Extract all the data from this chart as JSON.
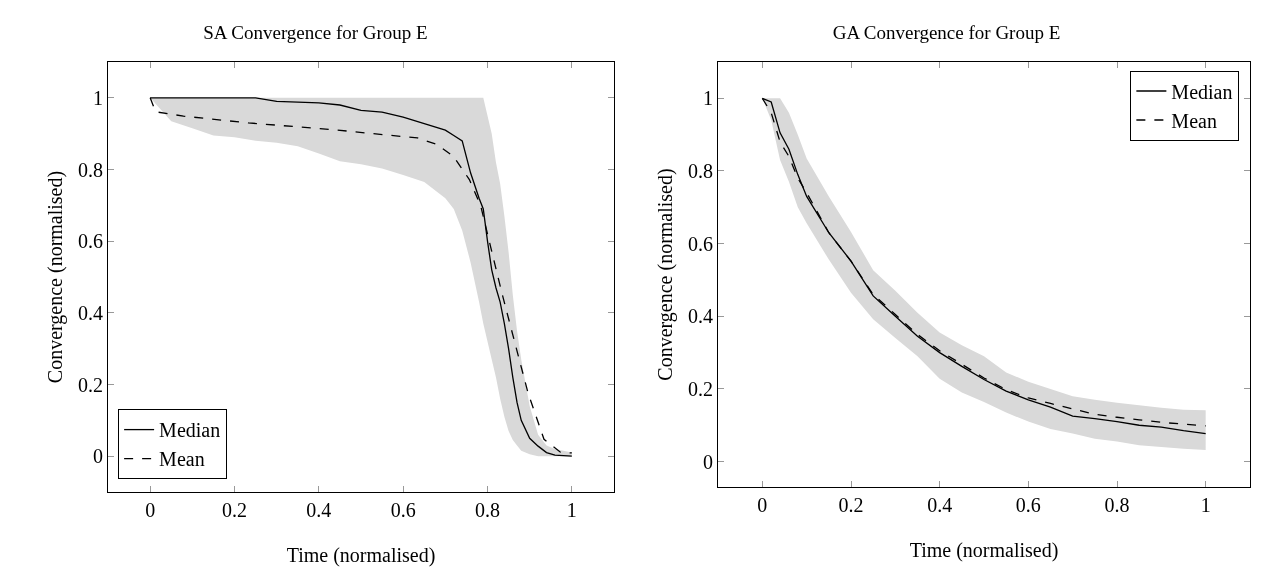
{
  "chart_data": [
    {
      "type": "line",
      "title": "SA Convergence for Group E",
      "xlabel": "Time (normalised)",
      "ylabel": "Convergence (normalised)",
      "xlim": [
        -0.1,
        1.1
      ],
      "ylim": [
        -0.1,
        1.1
      ],
      "xticks": [
        0,
        0.2,
        0.4,
        0.6,
        0.8,
        1
      ],
      "yticks": [
        0,
        0.2,
        0.4,
        0.6,
        0.8,
        1
      ],
      "grid": false,
      "legend": "bottom left",
      "marker": "none",
      "series": [
        {
          "name": "Median",
          "color": "#000000",
          "line_style": "solid",
          "x": [
            0,
            0.05,
            0.1,
            0.15,
            0.2,
            0.25,
            0.3,
            0.35,
            0.4,
            0.45,
            0.5,
            0.55,
            0.6,
            0.65,
            0.7,
            0.72,
            0.74,
            0.76,
            0.78,
            0.79,
            0.8,
            0.81,
            0.82,
            0.83,
            0.84,
            0.85,
            0.86,
            0.87,
            0.88,
            0.9,
            0.92,
            0.94,
            0.96,
            1
          ],
          "values": [
            1,
            1,
            1,
            1,
            1,
            1,
            0.99,
            0.988,
            0.986,
            0.98,
            0.965,
            0.96,
            0.946,
            0.928,
            0.91,
            0.895,
            0.88,
            0.79,
            0.72,
            0.69,
            0.6,
            0.52,
            0.47,
            0.43,
            0.37,
            0.3,
            0.22,
            0.15,
            0.1,
            0.05,
            0.028,
            0.01,
            0.003,
            0
          ],
          "lower": [
            1,
            0.935,
            0.915,
            0.895,
            0.89,
            0.88,
            0.875,
            0.865,
            0.845,
            0.823,
            0.815,
            0.803,
            0.785,
            0.765,
            0.72,
            0.69,
            0.63,
            0.54,
            0.43,
            0.37,
            0.32,
            0.27,
            0.22,
            0.16,
            0.11,
            0.07,
            0.045,
            0.03,
            0.015,
            0.005,
            0,
            0,
            0,
            0
          ],
          "upper": [
            1,
            1,
            1,
            1,
            1,
            1,
            1,
            1,
            1,
            1,
            1,
            1,
            1,
            1,
            1,
            1,
            1,
            1,
            1,
            1,
            0.95,
            0.9,
            0.82,
            0.76,
            0.67,
            0.57,
            0.45,
            0.35,
            0.27,
            0.14,
            0.06,
            0.03,
            0.02,
            0.01
          ]
        },
        {
          "name": "Mean",
          "color": "#000000",
          "line_style": "dashed",
          "x": [
            0,
            0.013,
            0.079,
            0.233,
            0.426,
            0.634,
            0.68,
            0.719,
            0.757,
            0.784,
            0.807,
            0.834,
            0.865,
            0.896,
            0.934,
            0.973,
            1
          ],
          "values": [
            1,
            0.961,
            0.949,
            0.93,
            0.912,
            0.888,
            0.87,
            0.837,
            0.772,
            0.698,
            0.586,
            0.456,
            0.316,
            0.177,
            0.047,
            0.011,
            0.009
          ]
        }
      ]
    },
    {
      "type": "line",
      "title": "GA Convergence for Group E",
      "xlabel": "Time (normalised)",
      "ylabel": "Convergence (normalised)",
      "xlim": [
        -0.1,
        1.1
      ],
      "ylim": [
        -0.07,
        1.1
      ],
      "xticks": [
        0,
        0.2,
        0.4,
        0.6,
        0.8,
        1
      ],
      "yticks": [
        0,
        0.2,
        0.4,
        0.6,
        0.8,
        1
      ],
      "grid": false,
      "legend": "top right",
      "marker": "none",
      "series": [
        {
          "name": "Median",
          "color": "#000000",
          "line_style": "solid",
          "x": [
            0,
            0.02,
            0.04,
            0.06,
            0.08,
            0.1,
            0.15,
            0.2,
            0.25,
            0.3,
            0.35,
            0.4,
            0.45,
            0.5,
            0.55,
            0.6,
            0.65,
            0.7,
            0.75,
            0.8,
            0.85,
            0.9,
            0.95,
            1
          ],
          "values": [
            1,
            0.99,
            0.905,
            0.86,
            0.79,
            0.73,
            0.63,
            0.552,
            0.456,
            0.4,
            0.345,
            0.3,
            0.262,
            0.226,
            0.194,
            0.17,
            0.15,
            0.125,
            0.118,
            0.11,
            0.1,
            0.095,
            0.085,
            0.077
          ],
          "lower": [
            1,
            0.94,
            0.83,
            0.77,
            0.7,
            0.656,
            0.556,
            0.465,
            0.392,
            0.34,
            0.29,
            0.228,
            0.19,
            0.164,
            0.135,
            0.11,
            0.09,
            0.077,
            0.063,
            0.055,
            0.045,
            0.04,
            0.035,
            0.032
          ],
          "upper": [
            1,
            1,
            1,
            0.96,
            0.9,
            0.834,
            0.73,
            0.632,
            0.527,
            0.47,
            0.41,
            0.355,
            0.32,
            0.29,
            0.245,
            0.22,
            0.2,
            0.18,
            0.17,
            0.162,
            0.155,
            0.148,
            0.143,
            0.141
          ]
        },
        {
          "name": "Mean",
          "color": "#000000",
          "line_style": "dashed",
          "x": [
            0,
            0.02,
            0.04,
            0.06,
            0.08,
            0.1,
            0.15,
            0.2,
            0.25,
            0.3,
            0.35,
            0.4,
            0.45,
            0.5,
            0.55,
            0.6,
            0.65,
            0.7,
            0.75,
            0.8,
            0.85,
            0.9,
            0.95,
            1
          ],
          "values": [
            1,
            0.96,
            0.88,
            0.84,
            0.78,
            0.74,
            0.63,
            0.552,
            0.46,
            0.405,
            0.35,
            0.305,
            0.268,
            0.23,
            0.198,
            0.175,
            0.16,
            0.145,
            0.13,
            0.122,
            0.115,
            0.108,
            0.103,
            0.098
          ]
        }
      ]
    }
  ]
}
